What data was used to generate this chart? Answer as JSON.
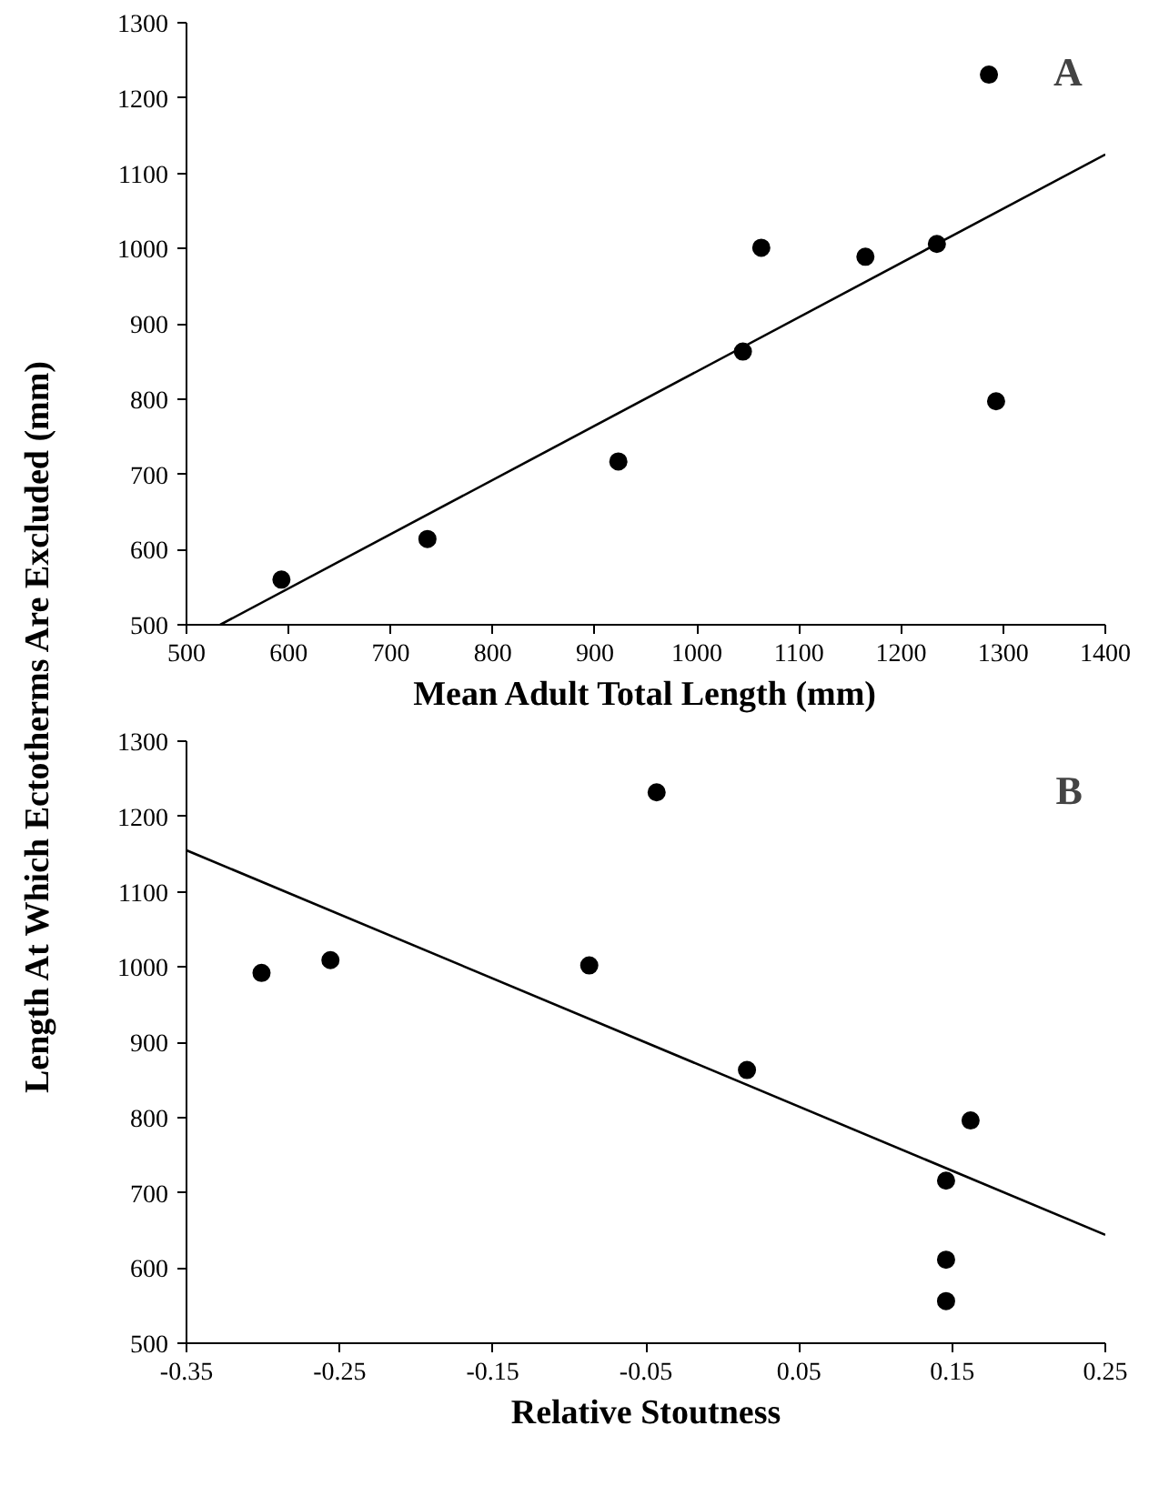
{
  "chart_data": [
    {
      "type": "scatter",
      "xlabel": "Mean Adult Total Length (mm)",
      "ylabel": "Length At Which Ectotherms Are Excluded (mm)",
      "annotations": [
        "A"
      ],
      "grid": false,
      "xlim": [
        500,
        1400
      ],
      "xticks": [
        500,
        600,
        700,
        800,
        900,
        1000,
        1100,
        1200,
        1300,
        1400
      ],
      "ylim": [
        500,
        1300
      ],
      "yticks": [
        500,
        600,
        700,
        800,
        900,
        1000,
        1100,
        1200,
        1300
      ],
      "series": [
        {
          "marker": "circle",
          "color": "#000000",
          "x": [
            593,
            736,
            923,
            1045,
            1063,
            1165,
            1235,
            1286,
            1293
          ],
          "values": [
            560,
            614,
            717,
            863,
            1001,
            989,
            1006,
            1231,
            797
          ]
        },
        {
          "type": "line",
          "color": "#000000",
          "x": [
            533,
            1400
          ],
          "values": [
            500,
            1125
          ]
        }
      ]
    },
    {
      "type": "scatter",
      "xlabel": "Relative Stoutness",
      "annotations": [
        "B"
      ],
      "grid": false,
      "xlim": [
        -0.35,
        0.25
      ],
      "xticks": [
        -0.35,
        -0.25,
        -0.15,
        -0.05,
        0.05,
        0.15,
        0.25
      ],
      "ylim": [
        500,
        1300
      ],
      "yticks": [
        500,
        600,
        700,
        800,
        900,
        1000,
        1100,
        1200,
        1300
      ],
      "series": [
        {
          "marker": "circle",
          "color": "#000000",
          "x": [
            -0.301,
            -0.256,
            -0.087,
            -0.043,
            0.016,
            0.146,
            0.162,
            0.146,
            0.146
          ],
          "values": [
            992,
            1009,
            1002,
            1232,
            863,
            716,
            796,
            611,
            556
          ]
        },
        {
          "type": "line",
          "color": "#000000",
          "x": [
            -0.35,
            0.25
          ],
          "values": [
            1155,
            644
          ]
        }
      ]
    }
  ]
}
